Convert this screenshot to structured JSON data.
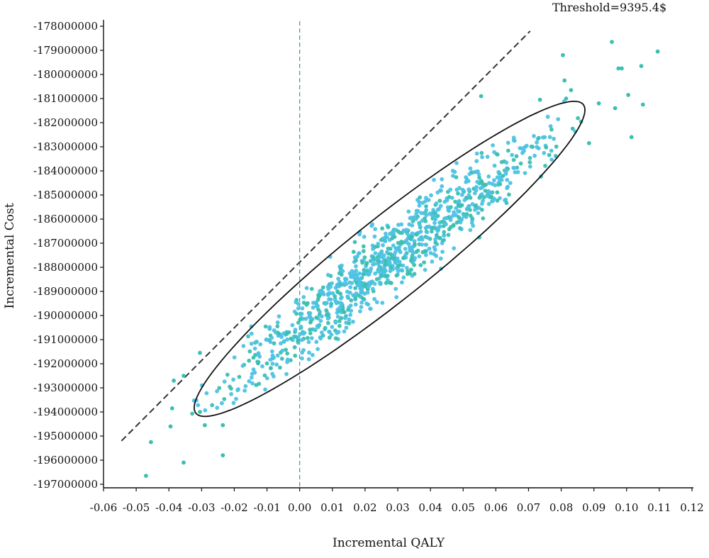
{
  "chart_data": {
    "type": "scatter",
    "title": "",
    "xlabel": "Incremental QALY",
    "ylabel": "Incremental Cost",
    "xlim": [
      -0.06,
      0.12
    ],
    "ylim": [
      -197000000,
      -178000000
    ],
    "x_ticks": [
      -0.06,
      -0.05,
      -0.04,
      -0.03,
      -0.02,
      -0.01,
      0.0,
      0.01,
      0.02,
      0.03,
      0.04,
      0.05,
      0.06,
      0.07,
      0.08,
      0.09,
      0.1,
      0.11,
      0.12
    ],
    "x_tick_labels": [
      "-0.06",
      "-0.05",
      "-0.04",
      "-0.03",
      "-0.02",
      "-0.01",
      "0.00",
      "0.01",
      "0.02",
      "0.03",
      "0.04",
      "0.05",
      "0.06",
      "0.07",
      "0.08",
      "0.09",
      "0.10",
      "0.11",
      "0.12"
    ],
    "y_ticks": [
      -197000000,
      -196000000,
      -195000000,
      -194000000,
      -193000000,
      -192000000,
      -191000000,
      -190000000,
      -189000000,
      -188000000,
      -187000000,
      -186000000,
      -185000000,
      -184000000,
      -183000000,
      -182000000,
      -181000000,
      -180000000,
      -179000000,
      -178000000
    ],
    "y_tick_labels": [
      "-197000000",
      "-196000000",
      "-195000000",
      "-194000000",
      "-193000000",
      "-192000000",
      "-191000000",
      "-190000000",
      "-189000000",
      "-188000000",
      "-187000000",
      "-186000000",
      "-185000000",
      "-184000000",
      "-183000000",
      "-182000000",
      "-181000000",
      "-180000000",
      "-179000000",
      "-178000000"
    ],
    "annotation": "Threshold=9395.4$",
    "threshold_line": {
      "x": [
        -0.0545,
        0.0705
      ],
      "y": [
        -195200000,
        -178200000
      ],
      "style": "dashed"
    },
    "zero_line": {
      "x": 0.0,
      "style": "dashed"
    },
    "confidence_ellipse": {
      "center": [
        0.0275,
        -187650000
      ],
      "semi_axis_major_qaly": 0.0595,
      "semi_axis_major_cost": 6350000,
      "semi_axis_minor_qaly": -0.0056,
      "semi_axis_minor_cost": 1550000
    },
    "grid": false,
    "legend": "none",
    "colors": {
      "point": "#4ec2e4",
      "point_alt": "#3bbfb0",
      "ellipse": "#111111",
      "dashed": "#333333",
      "axis": "#111111"
    },
    "outliers": [
      {
        "x": -0.047,
        "y": -196650000
      },
      {
        "x": -0.0455,
        "y": -195250000
      },
      {
        "x": -0.0395,
        "y": -194600000
      },
      {
        "x": -0.039,
        "y": -193850000
      },
      {
        "x": -0.0385,
        "y": -192700000
      },
      {
        "x": -0.0355,
        "y": -196100000
      },
      {
        "x": -0.0355,
        "y": -192500000
      },
      {
        "x": -0.0305,
        "y": -194000000
      },
      {
        "x": -0.0305,
        "y": -191550000
      },
      {
        "x": -0.029,
        "y": -194550000
      },
      {
        "x": -0.0235,
        "y": -195800000
      },
      {
        "x": -0.0235,
        "y": -194550000
      },
      {
        "x": 0.0555,
        "y": -180900000
      },
      {
        "x": 0.0735,
        "y": -181050000
      },
      {
        "x": 0.0805,
        "y": -179200000
      },
      {
        "x": 0.081,
        "y": -180250000
      },
      {
        "x": 0.0815,
        "y": -181000000
      },
      {
        "x": 0.083,
        "y": -180650000
      },
      {
        "x": 0.0835,
        "y": -182250000
      },
      {
        "x": 0.0885,
        "y": -182850000
      },
      {
        "x": 0.0915,
        "y": -181200000
      },
      {
        "x": 0.0955,
        "y": -178650000
      },
      {
        "x": 0.0965,
        "y": -181400000
      },
      {
        "x": 0.0975,
        "y": -179750000
      },
      {
        "x": 0.0985,
        "y": -179750000
      },
      {
        "x": 0.1005,
        "y": -180850000
      },
      {
        "x": 0.1015,
        "y": -182600000
      },
      {
        "x": 0.1045,
        "y": -179650000
      },
      {
        "x": 0.105,
        "y": -181250000
      },
      {
        "x": 0.1095,
        "y": -179050000
      }
    ],
    "cloud": {
      "count": 1000,
      "mean": [
        0.0275,
        -187650000
      ],
      "sd_major": 0.45,
      "sd_minor": 0.36
    }
  }
}
